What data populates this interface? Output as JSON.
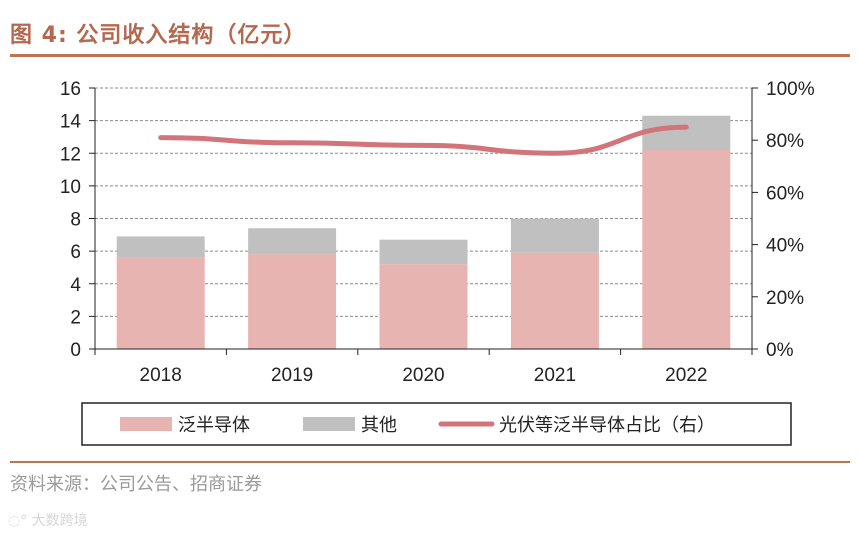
{
  "header": {
    "title": "图 4:  公司收入结构（亿元）"
  },
  "footer": {
    "source": "资料来源：公司公告、招商证券",
    "watermark": "大数跨境"
  },
  "chart_data": {
    "type": "bar",
    "stacked": true,
    "title": "公司收入结构（亿元）",
    "categories": [
      "2018",
      "2019",
      "2020",
      "2021",
      "2022"
    ],
    "series": [
      {
        "name": "泛半导体",
        "kind": "bar",
        "axis": "left",
        "color": "#e8b4b2",
        "values": [
          5.6,
          5.8,
          5.2,
          5.9,
          12.2
        ]
      },
      {
        "name": "其他",
        "kind": "bar",
        "axis": "left",
        "color": "#c0c0c0",
        "values": [
          1.3,
          1.6,
          1.5,
          2.1,
          2.1
        ]
      },
      {
        "name": "光伏等泛半导体占比（右）",
        "kind": "line",
        "axis": "right",
        "color": "#d2757a",
        "values": [
          81,
          79,
          78,
          75,
          85
        ]
      }
    ],
    "y_left": {
      "min": 0,
      "max": 16,
      "ticks": [
        "0",
        "2",
        "4",
        "6",
        "8",
        "10",
        "12",
        "14",
        "16"
      ]
    },
    "y_right": {
      "min": 0,
      "max": 100,
      "ticks": [
        "0%",
        "20%",
        "40%",
        "60%",
        "80%",
        "100%"
      ]
    },
    "grid": true,
    "legend_position": "bottom"
  }
}
